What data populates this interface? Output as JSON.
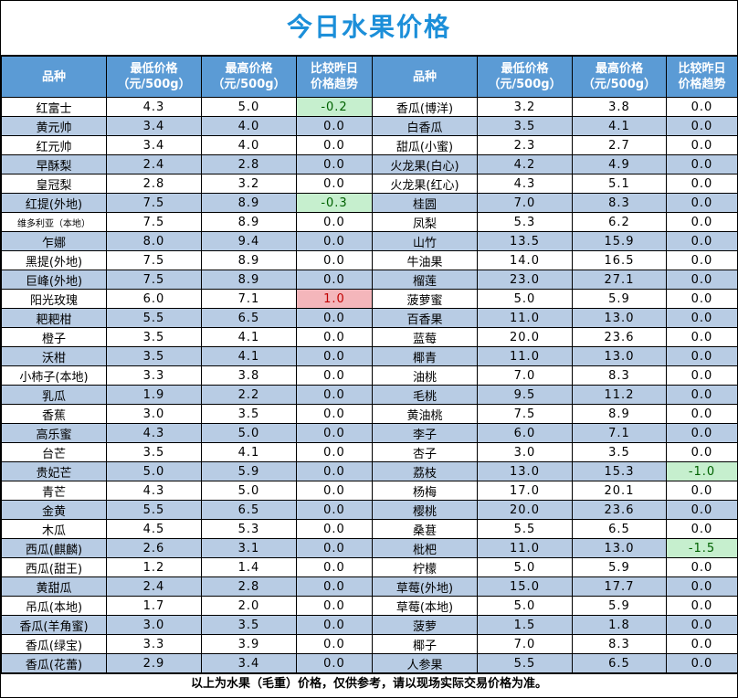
{
  "title": "今日水果价格",
  "headers": {
    "name": "品种",
    "low": "最低价格\n（元/500g）",
    "high": "最高价格\n（元/500g）",
    "change": "比较昨日\n价格趋势"
  },
  "rows": [
    {
      "l": {
        "name": "红富士",
        "low": "4.3",
        "high": "5.0",
        "chg": "-0.2",
        "trend": "down"
      },
      "r": {
        "name": "香瓜(博洋)",
        "low": "3.2",
        "high": "3.8",
        "chg": "0.0",
        "trend": ""
      }
    },
    {
      "l": {
        "name": "黄元帅",
        "low": "3.4",
        "high": "4.0",
        "chg": "0.0",
        "trend": ""
      },
      "r": {
        "name": "白香瓜",
        "low": "3.5",
        "high": "4.1",
        "chg": "0.0",
        "trend": ""
      }
    },
    {
      "l": {
        "name": "红元帅",
        "low": "3.4",
        "high": "4.0",
        "chg": "0.0",
        "trend": ""
      },
      "r": {
        "name": "甜瓜(小蜜)",
        "low": "2.3",
        "high": "2.7",
        "chg": "0.0",
        "trend": ""
      }
    },
    {
      "l": {
        "name": "早酥梨",
        "low": "2.4",
        "high": "2.8",
        "chg": "0.0",
        "trend": ""
      },
      "r": {
        "name": "火龙果(白心)",
        "low": "4.2",
        "high": "4.9",
        "chg": "0.0",
        "trend": ""
      }
    },
    {
      "l": {
        "name": "皇冠梨",
        "low": "2.8",
        "high": "3.2",
        "chg": "0.0",
        "trend": ""
      },
      "r": {
        "name": "火龙果(红心)",
        "low": "4.3",
        "high": "5.1",
        "chg": "0.0",
        "trend": ""
      }
    },
    {
      "l": {
        "name": "红提(外地)",
        "low": "7.5",
        "high": "8.9",
        "chg": "-0.3",
        "trend": "down"
      },
      "r": {
        "name": "桂圆",
        "low": "7.0",
        "high": "8.3",
        "chg": "0.0",
        "trend": ""
      }
    },
    {
      "l": {
        "name": "维多利亚（本地）",
        "low": "7.5",
        "high": "8.9",
        "chg": "0.0",
        "trend": "",
        "small": true
      },
      "r": {
        "name": "凤梨",
        "low": "5.3",
        "high": "6.2",
        "chg": "0.0",
        "trend": ""
      }
    },
    {
      "l": {
        "name": "乍娜",
        "low": "8.0",
        "high": "9.4",
        "chg": "0.0",
        "trend": ""
      },
      "r": {
        "name": "山竹",
        "low": "13.5",
        "high": "15.9",
        "chg": "0.0",
        "trend": ""
      }
    },
    {
      "l": {
        "name": "黑提(外地)",
        "low": "7.5",
        "high": "8.9",
        "chg": "0.0",
        "trend": ""
      },
      "r": {
        "name": "牛油果",
        "low": "14.0",
        "high": "16.5",
        "chg": "0.0",
        "trend": ""
      }
    },
    {
      "l": {
        "name": "巨峰(外地)",
        "low": "7.5",
        "high": "8.9",
        "chg": "0.0",
        "trend": ""
      },
      "r": {
        "name": "榴莲",
        "low": "23.0",
        "high": "27.1",
        "chg": "0.0",
        "trend": ""
      }
    },
    {
      "l": {
        "name": "阳光玫瑰",
        "low": "6.0",
        "high": "7.1",
        "chg": "1.0",
        "trend": "up"
      },
      "r": {
        "name": "菠萝蜜",
        "low": "5.0",
        "high": "5.9",
        "chg": "0.0",
        "trend": ""
      }
    },
    {
      "l": {
        "name": "耙耙柑",
        "low": "5.5",
        "high": "6.5",
        "chg": "0.0",
        "trend": ""
      },
      "r": {
        "name": "百香果",
        "low": "11.0",
        "high": "13.0",
        "chg": "0.0",
        "trend": ""
      }
    },
    {
      "l": {
        "name": "橙子",
        "low": "3.5",
        "high": "4.1",
        "chg": "0.0",
        "trend": ""
      },
      "r": {
        "name": "蓝莓",
        "low": "20.0",
        "high": "23.6",
        "chg": "0.0",
        "trend": ""
      }
    },
    {
      "l": {
        "name": "沃柑",
        "low": "3.5",
        "high": "4.1",
        "chg": "0.0",
        "trend": ""
      },
      "r": {
        "name": "椰青",
        "low": "11.0",
        "high": "13.0",
        "chg": "0.0",
        "trend": ""
      }
    },
    {
      "l": {
        "name": "小柿子(本地)",
        "low": "3.3",
        "high": "3.8",
        "chg": "0.0",
        "trend": ""
      },
      "r": {
        "name": "油桃",
        "low": "7.0",
        "high": "8.3",
        "chg": "0.0",
        "trend": ""
      }
    },
    {
      "l": {
        "name": "乳瓜",
        "low": "1.9",
        "high": "2.2",
        "chg": "0.0",
        "trend": ""
      },
      "r": {
        "name": "毛桃",
        "low": "9.5",
        "high": "11.2",
        "chg": "0.0",
        "trend": ""
      }
    },
    {
      "l": {
        "name": "香蕉",
        "low": "3.0",
        "high": "3.5",
        "chg": "0.0",
        "trend": ""
      },
      "r": {
        "name": "黄油桃",
        "low": "7.5",
        "high": "8.9",
        "chg": "0.0",
        "trend": ""
      }
    },
    {
      "l": {
        "name": "高乐蜜",
        "low": "4.3",
        "high": "5.0",
        "chg": "0.0",
        "trend": ""
      },
      "r": {
        "name": "李子",
        "low": "6.0",
        "high": "7.1",
        "chg": "0.0",
        "trend": ""
      }
    },
    {
      "l": {
        "name": "台芒",
        "low": "3.5",
        "high": "4.1",
        "chg": "0.0",
        "trend": ""
      },
      "r": {
        "name": "杏子",
        "low": "3.0",
        "high": "3.5",
        "chg": "0.0",
        "trend": ""
      }
    },
    {
      "l": {
        "name": "贵妃芒",
        "low": "5.0",
        "high": "5.9",
        "chg": "0.0",
        "trend": ""
      },
      "r": {
        "name": "荔枝",
        "low": "13.0",
        "high": "15.3",
        "chg": "-1.0",
        "trend": "down"
      }
    },
    {
      "l": {
        "name": "青芒",
        "low": "4.3",
        "high": "5.0",
        "chg": "0.0",
        "trend": ""
      },
      "r": {
        "name": "杨梅",
        "low": "17.0",
        "high": "20.1",
        "chg": "0.0",
        "trend": ""
      }
    },
    {
      "l": {
        "name": "金黄",
        "low": "5.5",
        "high": "6.5",
        "chg": "0.0",
        "trend": ""
      },
      "r": {
        "name": "樱桃",
        "low": "20.0",
        "high": "23.6",
        "chg": "0.0",
        "trend": ""
      }
    },
    {
      "l": {
        "name": "木瓜",
        "low": "4.5",
        "high": "5.3",
        "chg": "0.0",
        "trend": ""
      },
      "r": {
        "name": "桑葚",
        "low": "5.5",
        "high": "6.5",
        "chg": "0.0",
        "trend": ""
      }
    },
    {
      "l": {
        "name": "西瓜(麒麟)",
        "low": "2.6",
        "high": "3.1",
        "chg": "0.0",
        "trend": ""
      },
      "r": {
        "name": "枇杷",
        "low": "11.0",
        "high": "13.0",
        "chg": "-1.5",
        "trend": "down"
      }
    },
    {
      "l": {
        "name": "西瓜(甜王)",
        "low": "1.2",
        "high": "1.4",
        "chg": "0.0",
        "trend": ""
      },
      "r": {
        "name": "柠檬",
        "low": "5.0",
        "high": "5.9",
        "chg": "0.0",
        "trend": ""
      }
    },
    {
      "l": {
        "name": "黄甜瓜",
        "low": "2.4",
        "high": "2.8",
        "chg": "0.0",
        "trend": ""
      },
      "r": {
        "name": "草莓(外地)",
        "low": "15.0",
        "high": "17.7",
        "chg": "0.0",
        "trend": ""
      }
    },
    {
      "l": {
        "name": "吊瓜(本地)",
        "low": "1.7",
        "high": "2.0",
        "chg": "0.0",
        "trend": ""
      },
      "r": {
        "name": "草莓(本地)",
        "low": "5.0",
        "high": "5.9",
        "chg": "0.0",
        "trend": ""
      }
    },
    {
      "l": {
        "name": "香瓜(羊角蜜)",
        "low": "3.0",
        "high": "3.5",
        "chg": "0.0",
        "trend": ""
      },
      "r": {
        "name": "菠萝",
        "low": "1.5",
        "high": "1.8",
        "chg": "0.0",
        "trend": ""
      }
    },
    {
      "l": {
        "name": "香瓜(绿宝)",
        "low": "3.3",
        "high": "3.9",
        "chg": "0.0",
        "trend": ""
      },
      "r": {
        "name": "椰子",
        "low": "7.0",
        "high": "8.3",
        "chg": "0.0",
        "trend": ""
      }
    },
    {
      "l": {
        "name": "香瓜(花蕾)",
        "low": "2.9",
        "high": "3.4",
        "chg": "0.0",
        "trend": ""
      },
      "r": {
        "name": "人参果",
        "low": "5.5",
        "high": "6.5",
        "chg": "0.0",
        "trend": ""
      }
    }
  ],
  "footer": "以上为水果（毛重）价格，仅供参考，请以现场实际交易价格为准。",
  "colors": {
    "title": "#1c8fd9",
    "header_bg": "#5b9bd5",
    "alt_row_bg": "#b8cce4",
    "up_bg": "#f4b6bb",
    "up_text": "#c00000",
    "down_bg": "#c6efce",
    "down_text": "#006100"
  }
}
